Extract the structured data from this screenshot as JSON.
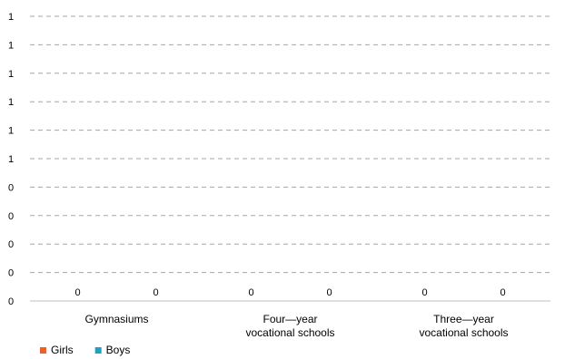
{
  "chart_data": {
    "type": "bar",
    "title": "",
    "xlabel": "",
    "ylabel": "",
    "categories": [
      [
        "Gymnasiums"
      ],
      [
        "Four—year",
        "vocational schools"
      ],
      [
        "Three—year",
        "vocational schools"
      ]
    ],
    "series": [
      {
        "name": "Girls",
        "color": "#E8622A",
        "values": [
          0,
          0,
          0
        ]
      },
      {
        "name": "Boys",
        "color": "#1BA3C6",
        "values": [
          0,
          0,
          0
        ]
      }
    ],
    "y_tick_labels": [
      "0",
      "0",
      "0",
      "0",
      "0",
      "1",
      "1",
      "1",
      "1",
      "1",
      "1"
    ],
    "data_labels": [
      [
        "0",
        "0",
        "0"
      ],
      [
        "0",
        "0",
        "0"
      ]
    ],
    "ylim": [
      0,
      1
    ],
    "grid": true,
    "grid_style": "dashed",
    "legend_position": "bottom-left"
  }
}
